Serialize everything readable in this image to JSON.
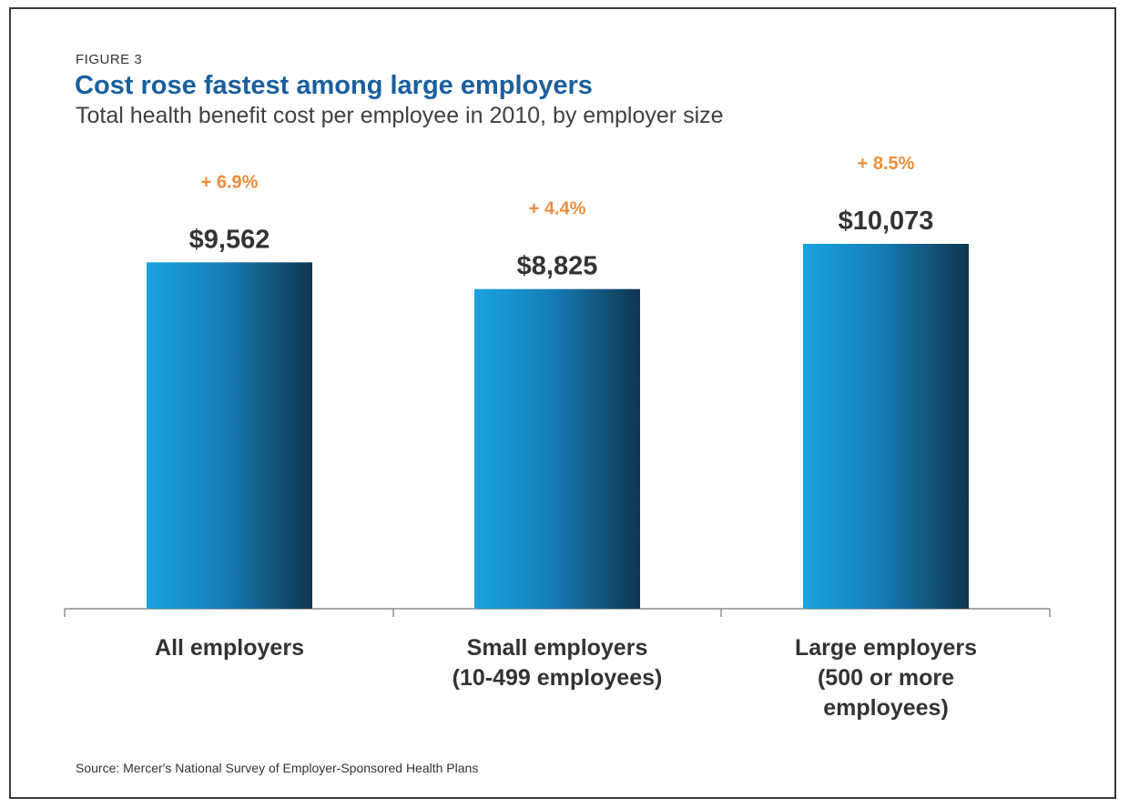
{
  "figure_label": "FIGURE 3",
  "source": "Source: Mercer's National Survey of Employer-Sponsored Health Plans",
  "colors": {
    "bar_light": "#1aa3e0",
    "bar_dark": "#0f3550",
    "pct_label": "#f08c3a",
    "title": "#1a5f9e"
  },
  "chart_data": {
    "type": "bar",
    "title": "Cost rose fastest among large employers",
    "subtitle": "Total health benefit cost per employee in 2010, by employer size",
    "categories": [
      [
        "All employers"
      ],
      [
        "Small employers",
        "(10-499 employees)"
      ],
      [
        "Large employers",
        "(500 or more",
        "employees)"
      ]
    ],
    "values": [
      9562,
      8825,
      10073
    ],
    "value_labels": [
      "$9,562",
      "$8,825",
      "$10,073"
    ],
    "change_labels": [
      "+ 6.9%",
      "+ 4.4%",
      "+ 8.5%"
    ],
    "xlabel": "",
    "ylabel": "",
    "ylim": [
      0,
      10073
    ],
    "grid": false,
    "legend": "none"
  }
}
